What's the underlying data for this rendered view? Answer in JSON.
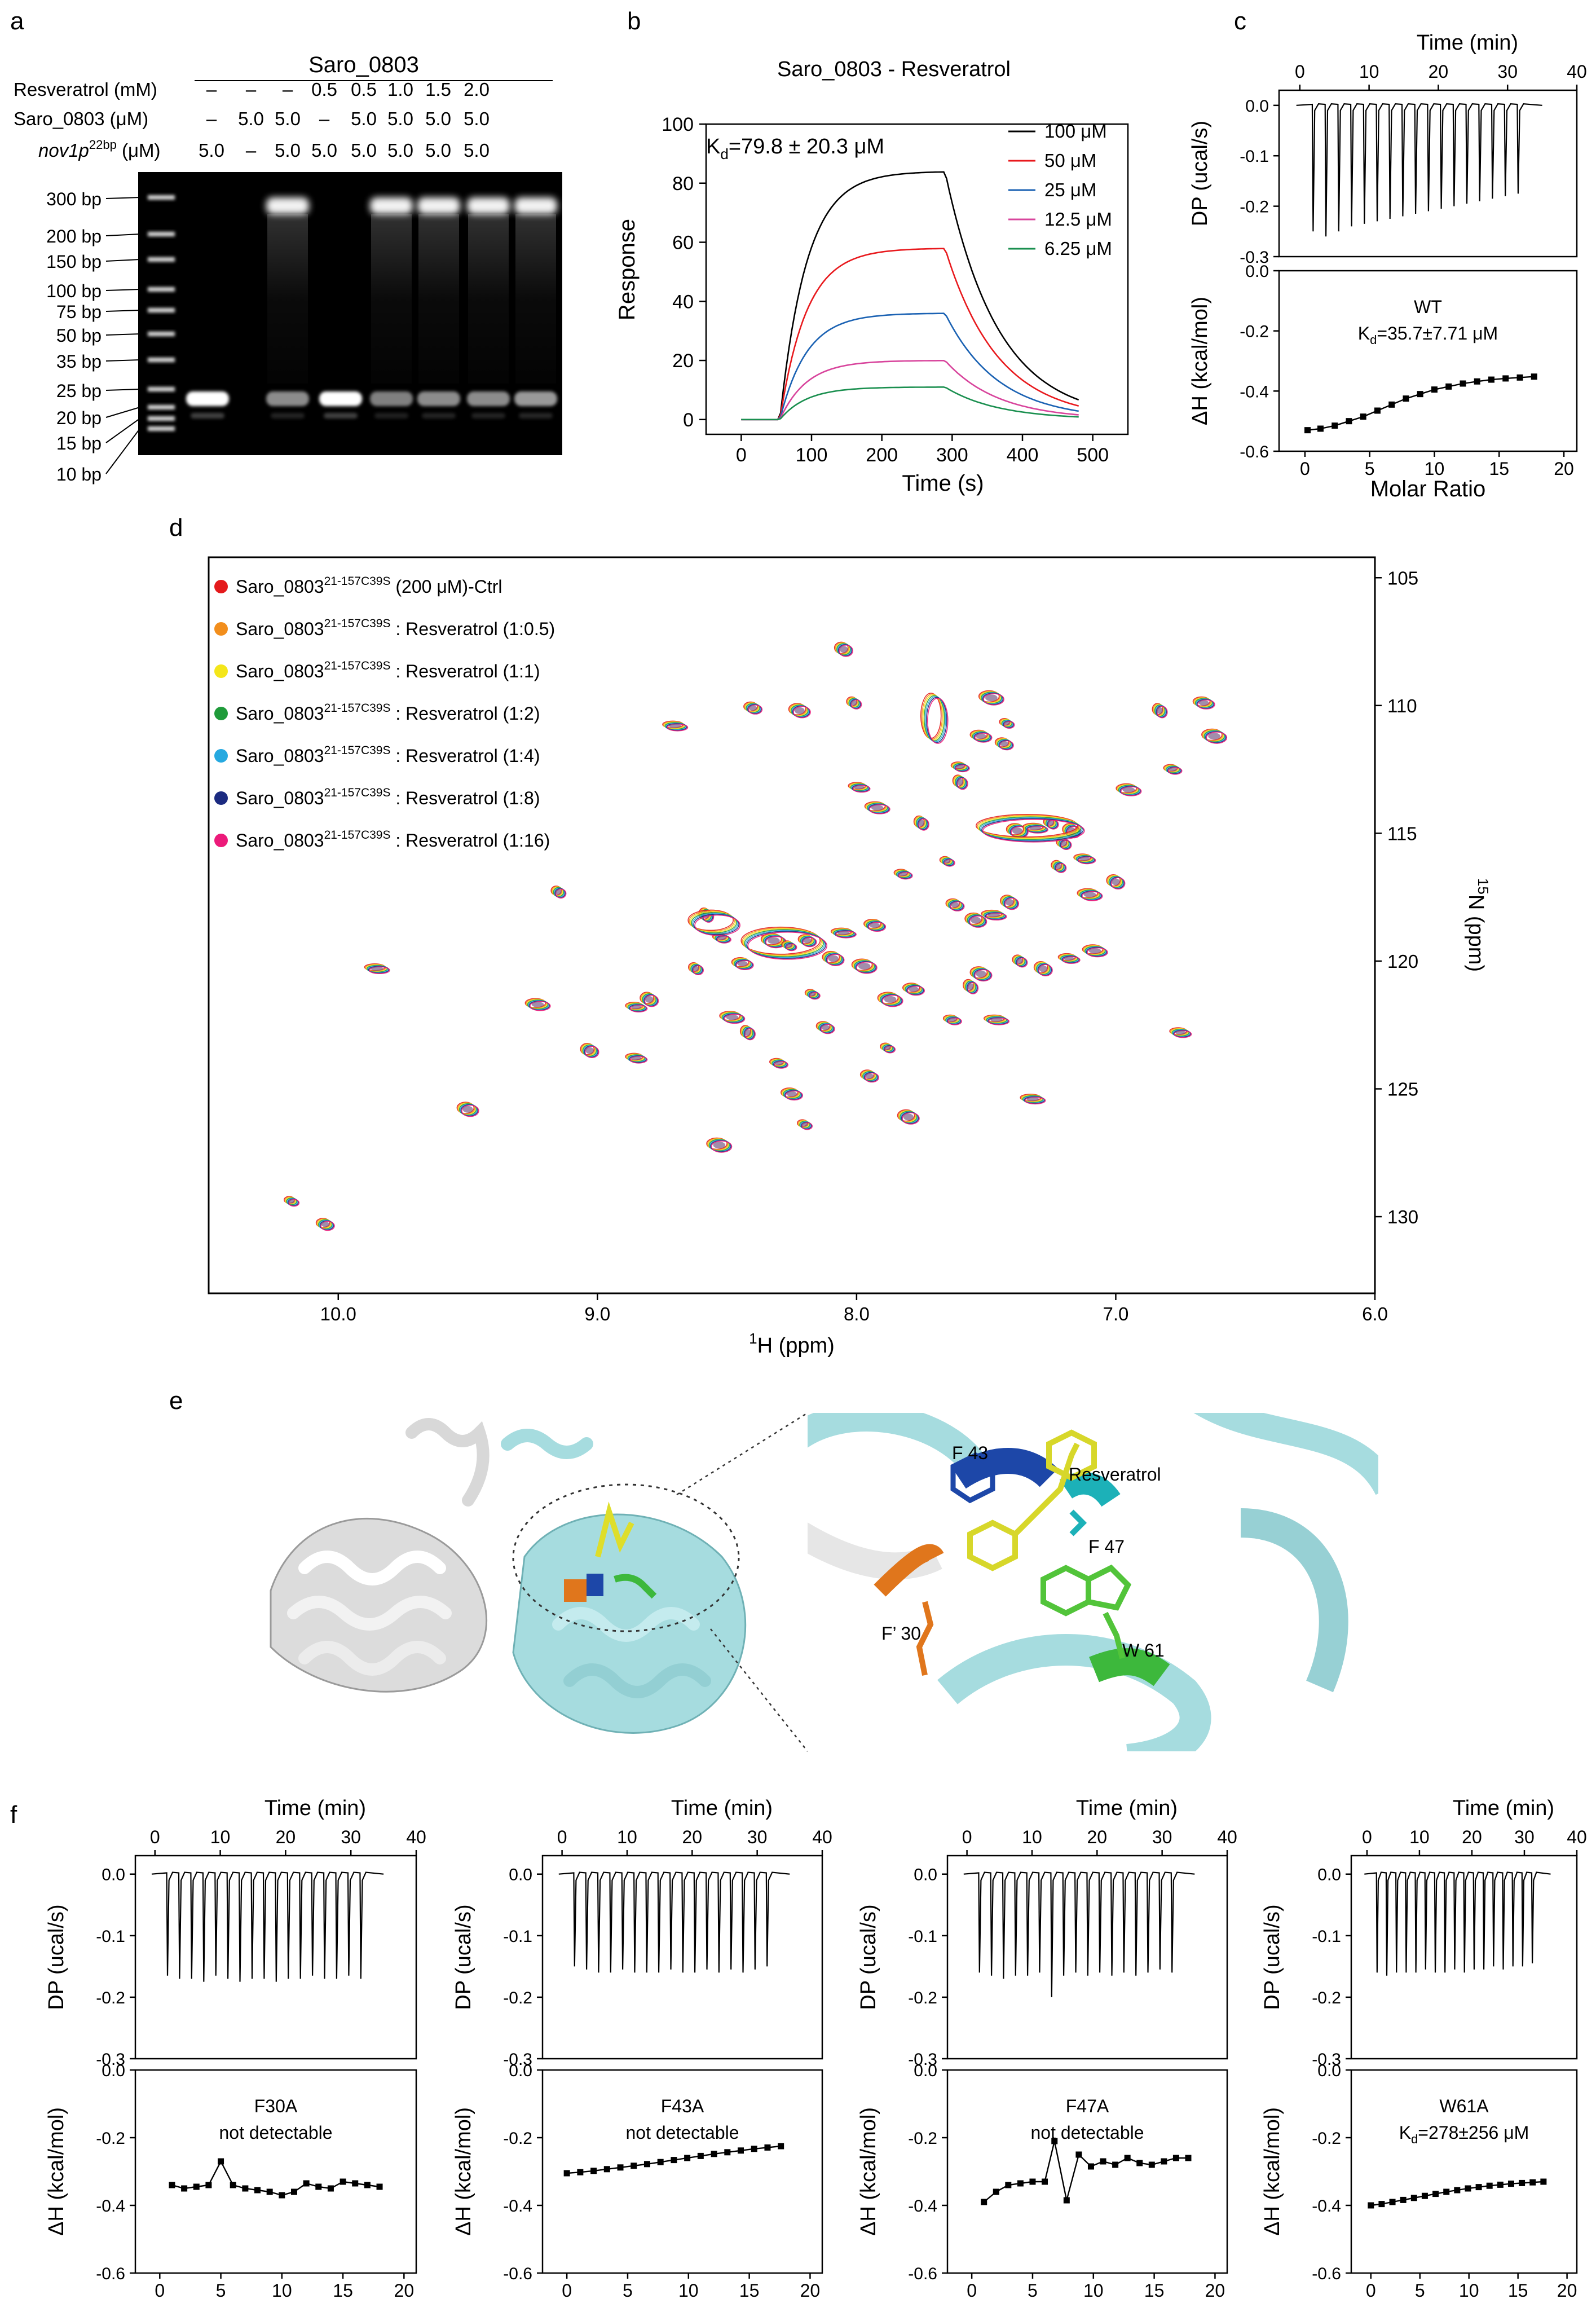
{
  "panel_labels": {
    "a": "a",
    "b": "b",
    "c": "c",
    "d": "d",
    "e": "e",
    "f": "f"
  },
  "gel": {
    "title": "Saro_0803",
    "rows": [
      {
        "label": "Resveratrol (mM)",
        "values": [
          "–",
          "–",
          "–",
          "0.5",
          "0.5",
          "1.0",
          "1.5",
          "2.0"
        ]
      },
      {
        "label": "Saro_0803 (μM)",
        "values": [
          "–",
          "5.0",
          "5.0",
          "–",
          "5.0",
          "5.0",
          "5.0",
          "5.0"
        ]
      },
      {
        "label_main": "nov1p",
        "label_sup": "22bp",
        "label_unit": " (μM)",
        "values": [
          "5.0",
          "–",
          "5.0",
          "5.0",
          "5.0",
          "5.0",
          "5.0",
          "5.0"
        ]
      }
    ],
    "ladder": [
      "300 bp",
      "200 bp",
      "150 bp",
      "100 bp",
      "75 bp",
      "50 bp",
      "35 bp",
      "25 bp",
      "20 bp",
      "15 bp",
      "10 bp"
    ]
  },
  "spr": {
    "title": "Saro_0803 - Resveratrol",
    "kd_prefix": "K",
    "kd_sub": "d",
    "kd_value": "=79.8 ± 20.3 μM",
    "xlabel": "Time (s)",
    "ylabel": "Response",
    "xticks": [
      "0",
      "100",
      "200",
      "300",
      "400",
      "500"
    ],
    "yticks": [
      "0",
      "20",
      "40",
      "60",
      "80",
      "100"
    ]
  },
  "itc_common": {
    "top_xlabel": "Time (min)",
    "top_xticks": [
      "0",
      "10",
      "20",
      "30",
      "40"
    ],
    "top_ylabel": "DP (ucal/s)",
    "top_yticks": [
      "0.0",
      "-0.1",
      "-0.2",
      "-0.3"
    ],
    "bot_ylabel": "ΔH (kcal/mol)",
    "bot_yticks": [
      "0.0",
      "-0.2",
      "-0.4",
      "-0.6"
    ],
    "bot_xlabel": "Molar Ratio",
    "bot_xticks": [
      "0",
      "5",
      "10",
      "15",
      "20"
    ]
  },
  "itc_panels": [
    {
      "id": "c",
      "name": "WT",
      "note_prefix": "K",
      "note_sub": "d",
      "note_rest": "=35.7±7.71 μM"
    },
    {
      "id": "f1",
      "name": "F30A",
      "note_rest": "not detectable"
    },
    {
      "id": "f2",
      "name": "F43A",
      "note_rest": "not detectable"
    },
    {
      "id": "f3",
      "name": "F47A",
      "note_rest": "not detectable"
    },
    {
      "id": "f4",
      "name": "W61A",
      "note_prefix": "K",
      "note_sub": "d",
      "note_rest": "=278±256 μM"
    }
  ],
  "nmr": {
    "xlabel_sup": "1",
    "xlabel_rest": "H (ppm)",
    "ylabel_sup": "15",
    "ylabel_rest": "N (ppm)",
    "xticks": [
      "10.0",
      "9.0",
      "8.0",
      "7.0",
      "6.0"
    ],
    "yticks": [
      "105",
      "110",
      "115",
      "120",
      "125",
      "130"
    ],
    "legend": [
      {
        "color": "#e41a1c",
        "prefix": "Saro_0803",
        "sup": "21-157C39S",
        "text": " (200 μM)-Ctrl"
      },
      {
        "color": "#f28e1c",
        "prefix": "Saro_0803",
        "sup": "21-157C39S",
        "text": " : Resveratrol (1:0.5)"
      },
      {
        "color": "#f4e61a",
        "prefix": "Saro_0803",
        "sup": "21-157C39S",
        "text": " : Resveratrol (1:1)"
      },
      {
        "color": "#1f9b3a",
        "prefix": "Saro_0803",
        "sup": "21-157C39S",
        "text": " : Resveratrol (1:2)"
      },
      {
        "color": "#26a9e0",
        "prefix": "Saro_0803",
        "sup": "21-157C39S",
        "text": " : Resveratrol (1:4)"
      },
      {
        "color": "#1b2a80",
        "prefix": "Saro_0803",
        "sup": "21-157C39S",
        "text": " : Resveratrol (1:8)"
      },
      {
        "color": "#ec1a7a",
        "prefix": "Saro_0803",
        "sup": "21-157C39S",
        "text": " : Resveratrol (1:16)"
      }
    ]
  },
  "structure": {
    "labels": [
      "F 43",
      "Resveratrol",
      "F 47",
      "F’ 30",
      "W 61"
    ],
    "colors": {
      "cyan": "#a6dcdf",
      "white": "#e4e4e4",
      "orange": "#e0761c",
      "blue": "#1d47a8",
      "yellow": "#dede2a",
      "green": "#3db83c",
      "teal": "#1cb1b8"
    }
  },
  "chart_data": [
    {
      "type": "line",
      "title": "Saro_0803 - Resveratrol",
      "xlabel": "Time (s)",
      "ylabel": "Response",
      "xlim": [
        -50,
        550
      ],
      "ylim": [
        -5,
        100
      ],
      "legend_position": "top-right",
      "x": [
        0,
        50,
        100,
        150,
        200,
        250,
        290,
        330,
        380,
        430,
        480
      ],
      "series": [
        {
          "name": "100 μM",
          "color": "#000000",
          "values": [
            0,
            0,
            55,
            74,
            81,
            83,
            84,
            52,
            28,
            15,
            7
          ]
        },
        {
          "name": "50 μM",
          "color": "#e8191d",
          "values": [
            0,
            0,
            33,
            47,
            54,
            57,
            58,
            36,
            19,
            10,
            5
          ]
        },
        {
          "name": "25 μM",
          "color": "#1b62b3",
          "values": [
            0,
            0,
            20,
            29,
            33,
            35,
            36,
            22,
            12,
            6,
            3
          ]
        },
        {
          "name": "12.5 μM",
          "color": "#d8449c",
          "values": [
            0,
            0,
            11,
            16,
            18,
            19,
            20,
            12,
            6,
            3,
            1
          ]
        },
        {
          "name": "6.25 μM",
          "color": "#1a8f4f",
          "values": [
            0,
            0,
            6,
            8,
            10,
            11,
            11,
            7,
            3,
            2,
            1
          ]
        }
      ]
    },
    {
      "type": "scatter",
      "title": "WT",
      "xlabel": "Molar Ratio",
      "ylabel": "ΔH (kcal/mol)",
      "xlim": [
        -2,
        21
      ],
      "ylim": [
        -0.6,
        0.0
      ],
      "x": [
        0.2,
        1.2,
        2.3,
        3.4,
        4.5,
        5.6,
        6.7,
        7.8,
        8.9,
        10.0,
        11.1,
        12.2,
        13.3,
        14.4,
        15.5,
        16.6,
        17.7
      ],
      "values": [
        -0.53,
        -0.525,
        -0.515,
        -0.5,
        -0.485,
        -0.465,
        -0.445,
        -0.425,
        -0.41,
        -0.395,
        -0.385,
        -0.375,
        -0.368,
        -0.362,
        -0.358,
        -0.355,
        -0.352
      ]
    },
    {
      "type": "scatter",
      "title": "F30A",
      "xlabel": "Molar Ratio",
      "ylabel": "ΔH (kcal/mol)",
      "xlim": [
        -2,
        21
      ],
      "ylim": [
        -0.6,
        0.0
      ],
      "x": [
        1.0,
        2.0,
        3.0,
        4.0,
        5.0,
        6.0,
        7.0,
        8.0,
        9.0,
        10.0,
        11.0,
        12.0,
        13.0,
        14.0,
        15.0,
        16.0,
        17.0,
        18.0
      ],
      "values": [
        -0.34,
        -0.35,
        -0.345,
        -0.34,
        -0.27,
        -0.34,
        -0.35,
        -0.355,
        -0.36,
        -0.37,
        -0.36,
        -0.335,
        -0.345,
        -0.35,
        -0.33,
        -0.335,
        -0.34,
        -0.345
      ]
    },
    {
      "type": "scatter",
      "title": "F43A",
      "xlabel": "Molar Ratio",
      "ylabel": "ΔH (kcal/mol)",
      "xlim": [
        -2,
        21
      ],
      "ylim": [
        -0.6,
        0.0
      ],
      "x": [
        0.0,
        1.1,
        2.2,
        3.3,
        4.4,
        5.5,
        6.6,
        7.7,
        8.8,
        9.9,
        11.0,
        12.1,
        13.2,
        14.3,
        15.4,
        16.5,
        17.6
      ],
      "values": [
        -0.305,
        -0.302,
        -0.298,
        -0.293,
        -0.288,
        -0.283,
        -0.278,
        -0.272,
        -0.266,
        -0.26,
        -0.254,
        -0.248,
        -0.243,
        -0.238,
        -0.233,
        -0.229,
        -0.225
      ]
    },
    {
      "type": "scatter",
      "title": "F47A",
      "xlabel": "Molar Ratio",
      "ylabel": "ΔH (kcal/mol)",
      "xlim": [
        -2,
        21
      ],
      "ylim": [
        -0.6,
        0.0
      ],
      "x": [
        1.0,
        2.0,
        3.0,
        4.0,
        5.0,
        6.0,
        6.8,
        7.8,
        8.8,
        9.8,
        10.8,
        11.8,
        12.8,
        13.8,
        14.8,
        15.8,
        16.8,
        17.8
      ],
      "values": [
        -0.39,
        -0.36,
        -0.34,
        -0.335,
        -0.33,
        -0.33,
        -0.21,
        -0.385,
        -0.25,
        -0.285,
        -0.27,
        -0.28,
        -0.26,
        -0.275,
        -0.28,
        -0.27,
        -0.26,
        -0.26
      ]
    },
    {
      "type": "scatter",
      "title": "W61A",
      "xlabel": "Molar Ratio",
      "ylabel": "ΔH (kcal/mol)",
      "xlim": [
        -2,
        21
      ],
      "ylim": [
        -0.6,
        0.0
      ],
      "x": [
        0.0,
        1.1,
        2.2,
        3.3,
        4.4,
        5.5,
        6.6,
        7.7,
        8.8,
        9.9,
        11.0,
        12.1,
        13.2,
        14.3,
        15.4,
        16.5,
        17.6
      ],
      "values": [
        -0.4,
        -0.396,
        -0.39,
        -0.384,
        -0.378,
        -0.372,
        -0.366,
        -0.36,
        -0.355,
        -0.35,
        -0.346,
        -0.342,
        -0.339,
        -0.336,
        -0.334,
        -0.332,
        -0.33
      ]
    }
  ]
}
